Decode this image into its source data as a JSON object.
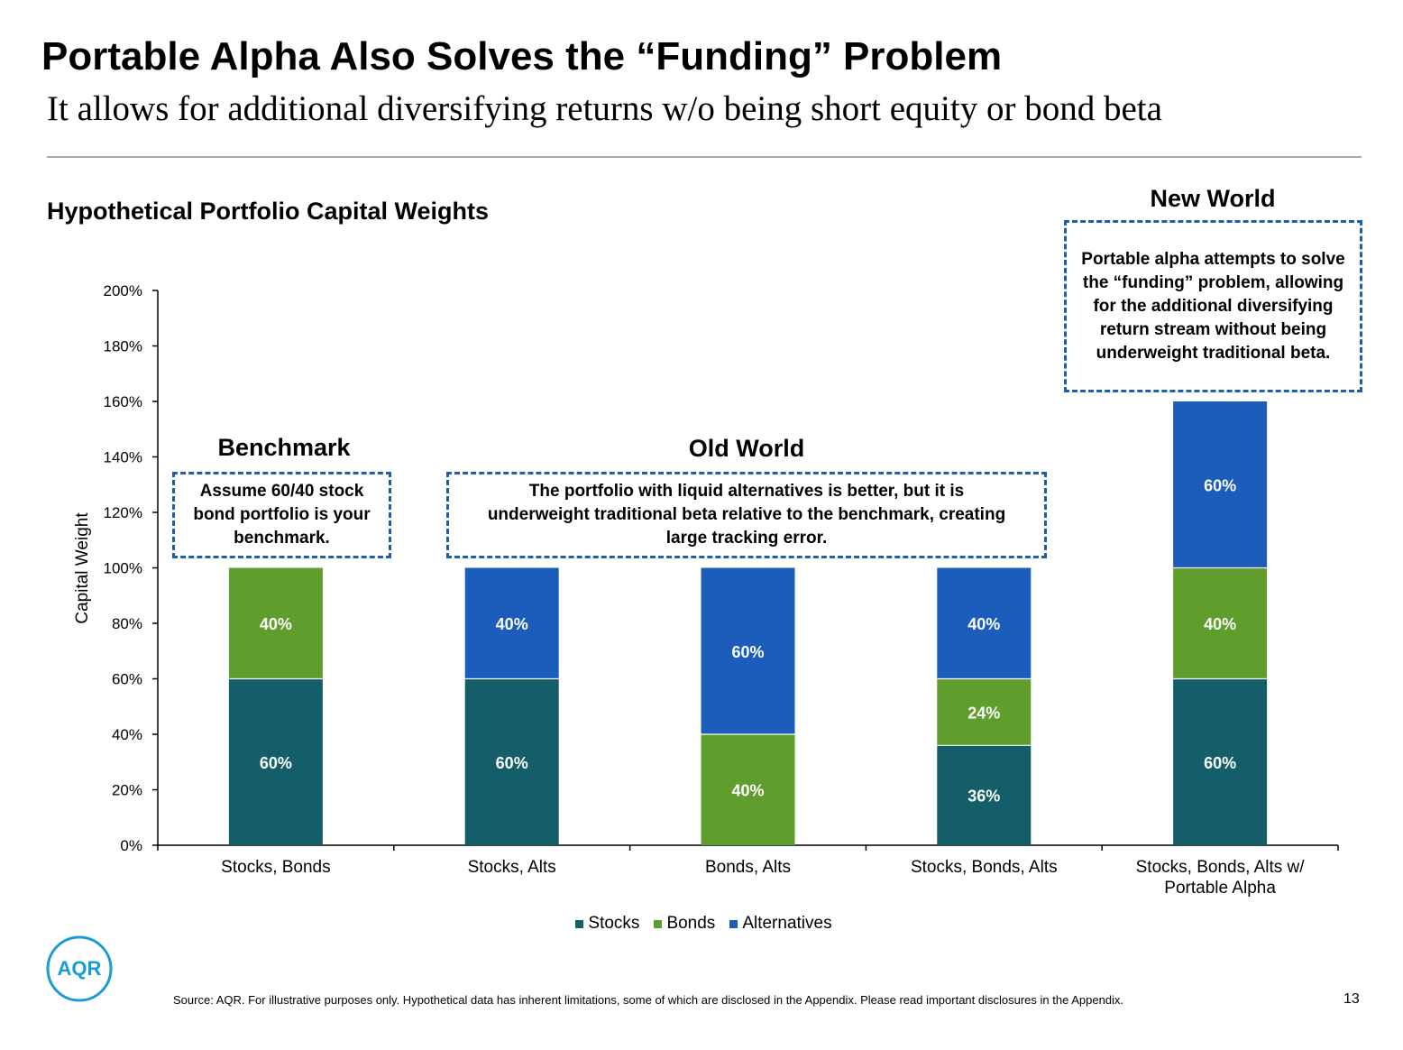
{
  "header": {
    "title": "Portable Alpha Also Solves the “Funding” Problem",
    "subtitle": "It allows for additional diversifying returns w/o being short equity or bond beta"
  },
  "groups": {
    "benchmark": {
      "heading": "Benchmark",
      "note": "Assume 60/40 stock bond portfolio is your benchmark."
    },
    "old_world": {
      "heading": "Old World",
      "note": "The portfolio with liquid alternatives is better, but it is underweight traditional beta relative to the benchmark, creating large tracking error."
    },
    "new_world": {
      "heading": "New World",
      "note": "Portable alpha attempts to solve the “funding” problem, allowing for the additional diversifying return stream without being underweight traditional beta."
    }
  },
  "colors": {
    "stocks": "#135e68",
    "bonds": "#5f9e2d",
    "alternatives": "#1c5cbb"
  },
  "chart_data": {
    "type": "bar",
    "stacked": true,
    "title": "Hypothetical Portfolio Capital Weights",
    "ylabel": "Capital Weight",
    "xlabel": "",
    "ylim": [
      0,
      200
    ],
    "yticks": [
      "0%",
      "20%",
      "40%",
      "60%",
      "80%",
      "100%",
      "120%",
      "140%",
      "160%",
      "180%",
      "200%"
    ],
    "categories": [
      "Stocks, Bonds",
      "Stocks, Alts",
      "Bonds, Alts",
      "Stocks, Bonds, Alts",
      "Stocks, Bonds, Alts w/ Portable Alpha"
    ],
    "series": [
      {
        "name": "Stocks",
        "values": [
          60,
          60,
          0,
          36,
          60
        ],
        "labels": [
          "60%",
          "60%",
          "",
          "36%",
          "60%"
        ]
      },
      {
        "name": "Bonds",
        "values": [
          40,
          0,
          40,
          24,
          40
        ],
        "labels": [
          "40%",
          "",
          "40%",
          "24%",
          "40%"
        ]
      },
      {
        "name": "Alternatives",
        "values": [
          0,
          40,
          60,
          40,
          60
        ],
        "labels": [
          "",
          "40%",
          "60%",
          "40%",
          "60%"
        ]
      }
    ],
    "legend_position": "bottom"
  },
  "logo_text": "AQR",
  "footer": {
    "source": "Source: AQR. For illustrative purposes only. Hypothetical data has inherent limitations, some of which are disclosed in the Appendix. Please read important disclosures in the Appendix.",
    "page_number": "13"
  }
}
